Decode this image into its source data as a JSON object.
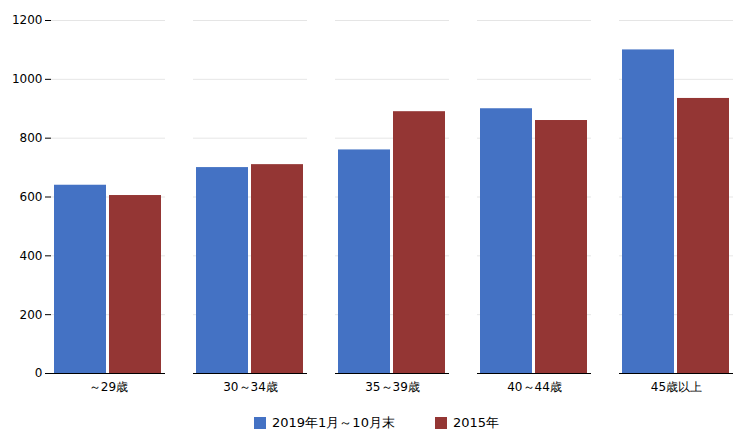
{
  "chart_data": {
    "type": "bar",
    "categories": [
      "～29歳",
      "30～34歳",
      "35～39歳",
      "40～44歳",
      "45歳以上"
    ],
    "series": [
      {
        "name": "2019年1月～10月末",
        "color": "#4472C4",
        "values": [
          640,
          700,
          760,
          900,
          1100
        ]
      },
      {
        "name": "2015年",
        "color": "#943634",
        "values": [
          605,
          710,
          890,
          860,
          935
        ]
      }
    ],
    "ylim": [
      0,
      1200
    ],
    "yticks": [
      0,
      200,
      400,
      600,
      800,
      1000,
      1200
    ],
    "grid": true,
    "legend": "bottom"
  }
}
